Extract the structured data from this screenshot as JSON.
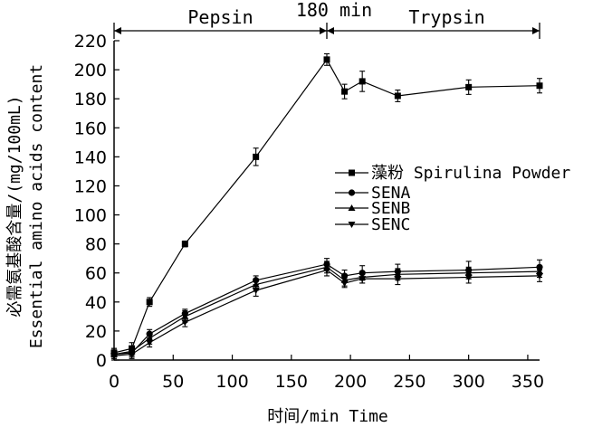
{
  "chart_data": {
    "type": "line",
    "xlabel": "时间/min Time",
    "ylabel_cn": "必需氨基酸含量/(mg/100mL)",
    "ylabel_en": "Essential amino acids content",
    "xlim": [
      0,
      360
    ],
    "ylim": [
      0,
      220
    ],
    "x_ticks": [
      0,
      50,
      100,
      150,
      200,
      250,
      300,
      350
    ],
    "y_ticks": [
      0,
      20,
      40,
      60,
      80,
      100,
      120,
      140,
      160,
      180,
      200,
      220
    ],
    "phase_labels": {
      "pepsin": "Pepsin",
      "mid": "180 min",
      "trypsin": "Trypsin"
    },
    "phase_bounds": [
      0,
      180,
      360
    ],
    "legend_position": "center-right",
    "series": [
      {
        "name": "藻粉  Spirulina Powder",
        "marker": "square",
        "x": [
          0,
          15,
          30,
          60,
          120,
          180,
          195,
          210,
          240,
          300,
          360
        ],
        "y": [
          5,
          8,
          40,
          80,
          140,
          207,
          185,
          192,
          182,
          188,
          189
        ],
        "err": [
          3,
          4,
          3,
          2,
          6,
          4,
          5,
          7,
          4,
          5,
          5
        ]
      },
      {
        "name": "SENA",
        "marker": "circle",
        "x": [
          0,
          15,
          30,
          60,
          120,
          180,
          195,
          210,
          240,
          300,
          360
        ],
        "y": [
          4,
          5,
          18,
          32,
          55,
          66,
          58,
          60,
          61,
          62,
          64
        ],
        "err": [
          3,
          3,
          3,
          3,
          3,
          4,
          4,
          5,
          5,
          6,
          5
        ]
      },
      {
        "name": "SENB",
        "marker": "triangle-up",
        "x": [
          0,
          15,
          30,
          60,
          120,
          180,
          195,
          210,
          240,
          300,
          360
        ],
        "y": [
          4,
          6,
          15,
          30,
          52,
          64,
          55,
          57,
          59,
          60,
          61
        ],
        "err": [
          4,
          3,
          4,
          4,
          4,
          4,
          4,
          4,
          4,
          4,
          4
        ]
      },
      {
        "name": "SENC",
        "marker": "triangle-down",
        "x": [
          0,
          15,
          30,
          60,
          120,
          180,
          195,
          210,
          240,
          300,
          360
        ],
        "y": [
          3,
          4,
          12,
          26,
          48,
          62,
          53,
          56,
          56,
          57,
          58
        ],
        "err": [
          3,
          3,
          3,
          3,
          4,
          4,
          3,
          3,
          4,
          4,
          4
        ]
      }
    ]
  }
}
